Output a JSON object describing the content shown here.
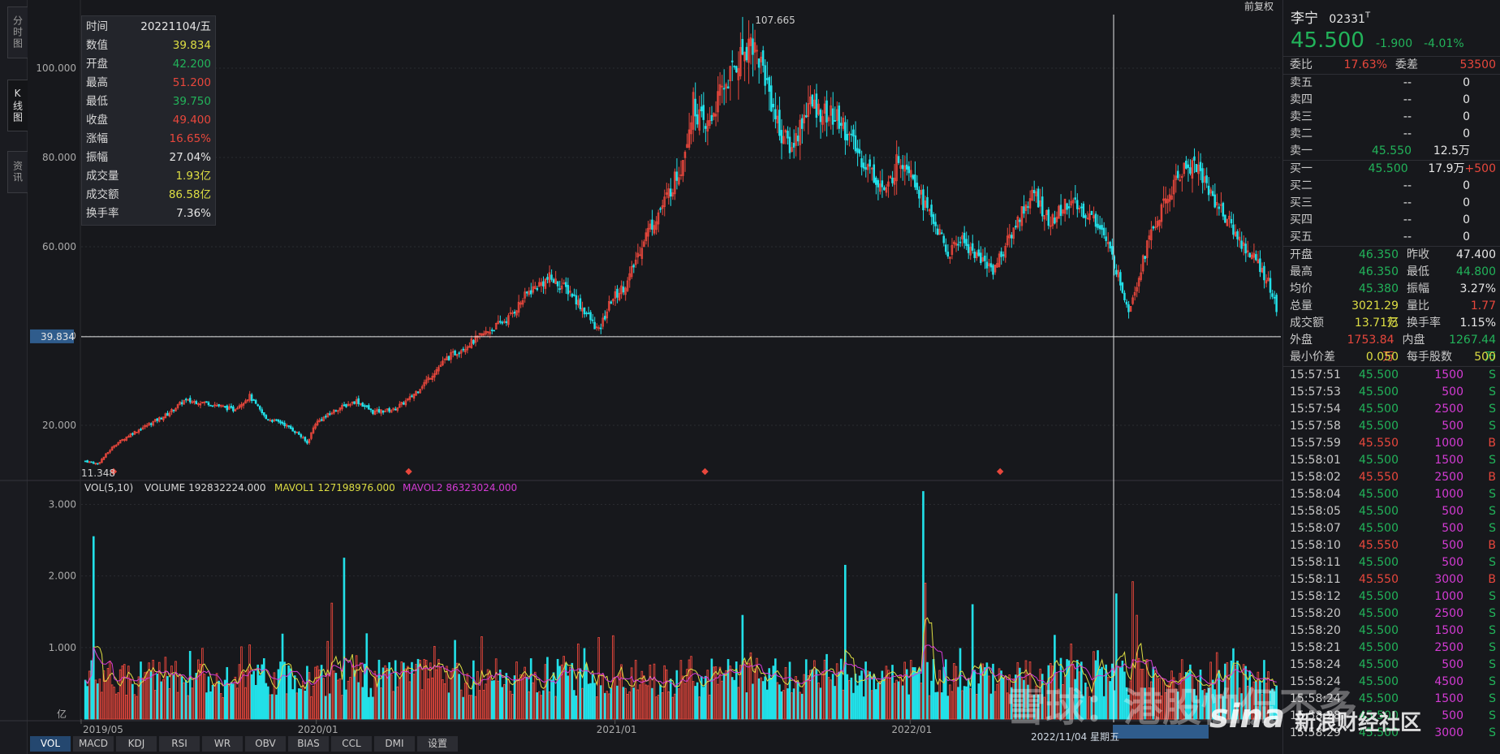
{
  "side_tabs": [
    {
      "label": "分时图",
      "active": false
    },
    {
      "label": "K线图",
      "active": true
    },
    {
      "label": "资讯",
      "active": false
    }
  ],
  "adjust_label": "前复权",
  "info_box": [
    {
      "label": "时间",
      "value": "20221104/五",
      "color": "#e6e6e6"
    },
    {
      "label": "数值",
      "value": "39.834",
      "color": "#dede43"
    },
    {
      "label": "开盘",
      "value": "42.200",
      "color": "#22b35a"
    },
    {
      "label": "最高",
      "value": "51.200",
      "color": "#e8473c"
    },
    {
      "label": "最低",
      "value": "39.750",
      "color": "#22b35a"
    },
    {
      "label": "收盘",
      "value": "49.400",
      "color": "#e8473c"
    },
    {
      "label": "涨幅",
      "value": "16.65%",
      "color": "#e8473c"
    },
    {
      "label": "振幅",
      "value": "27.04%",
      "color": "#e6e6e6"
    },
    {
      "label": "成交量",
      "value": "1.93亿",
      "color": "#dede43"
    },
    {
      "label": "成交额",
      "value": "86.58亿",
      "color": "#dede43"
    },
    {
      "label": "换手率",
      "value": "7.36%",
      "color": "#e6e6e6"
    }
  ],
  "vol_legend": {
    "name": "VOL(5,10)",
    "volume": "VOLUME 192832224.000",
    "mavol1": "MAVOL1 127198976.000",
    "mavol2": "MAVOL2 86323024.000"
  },
  "crosshair": {
    "price_label": "39.834",
    "date_label": "2022/11/04 星期五",
    "price": 39.834
  },
  "colors": {
    "up": "#e8473c",
    "down": "#22e0e8",
    "ma1": "#dede43",
    "ma2": "#d43bd4",
    "bg": "#17181c"
  },
  "bottom_tabs": [
    "VOL",
    "MACD",
    "KDJ",
    "RSI",
    "WR",
    "OBV",
    "BIAS",
    "CCL",
    "DMI",
    "设置"
  ],
  "chart_data": {
    "type": "candlestick",
    "price_axis": {
      "ticks": [
        "100.000",
        "80.000",
        "60.000",
        "40.000",
        "20.000"
      ],
      "min": 8,
      "max": 112
    },
    "volume_axis": {
      "ticks": [
        "3.000",
        "2.000",
        "1.000"
      ],
      "unit": "亿",
      "min": 0,
      "max": 3.3
    },
    "x_labels": [
      "2019/05",
      "2020/01",
      "2021/01",
      "2022/01"
    ],
    "max_label": "107.665",
    "min_label": "11.348",
    "anchors": [
      [
        0,
        12.0
      ],
      [
        6,
        11.35
      ],
      [
        14,
        15.5
      ],
      [
        22,
        18.0
      ],
      [
        30,
        20.0
      ],
      [
        40,
        22.5
      ],
      [
        48,
        25.5
      ],
      [
        60,
        25.0
      ],
      [
        72,
        23.5
      ],
      [
        80,
        26.5
      ],
      [
        88,
        21.5
      ],
      [
        96,
        20.5
      ],
      [
        104,
        18.0
      ],
      [
        108,
        16.0
      ],
      [
        112,
        20.5
      ],
      [
        122,
        23.5
      ],
      [
        132,
        25.5
      ],
      [
        140,
        23.0
      ],
      [
        150,
        23.5
      ],
      [
        158,
        26.0
      ],
      [
        166,
        30.0
      ],
      [
        176,
        35.0
      ],
      [
        186,
        38.0
      ],
      [
        196,
        41.0
      ],
      [
        206,
        44.0
      ],
      [
        216,
        50.0
      ],
      [
        226,
        53.0
      ],
      [
        236,
        50.0
      ],
      [
        244,
        45.0
      ],
      [
        250,
        41.0
      ],
      [
        256,
        48.0
      ],
      [
        264,
        52.0
      ],
      [
        272,
        62.0
      ],
      [
        282,
        70.0
      ],
      [
        290,
        78.0
      ],
      [
        296,
        92.0
      ],
      [
        302,
        86.0
      ],
      [
        310,
        95.0
      ],
      [
        318,
        102.0
      ],
      [
        324,
        106.5
      ],
      [
        330,
        100.0
      ],
      [
        338,
        86.0
      ],
      [
        344,
        82.0
      ],
      [
        352,
        92.0
      ],
      [
        360,
        90.0
      ],
      [
        368,
        88.0
      ],
      [
        376,
        81.0
      ],
      [
        384,
        76.0
      ],
      [
        390,
        72.0
      ],
      [
        396,
        80.0
      ],
      [
        402,
        78.0
      ],
      [
        408,
        70.0
      ],
      [
        414,
        65.0
      ],
      [
        420,
        58.0
      ],
      [
        426,
        62.0
      ],
      [
        434,
        58.0
      ],
      [
        442,
        55.0
      ],
      [
        448,
        60.0
      ],
      [
        456,
        68.0
      ],
      [
        462,
        72.0
      ],
      [
        470,
        65.0
      ],
      [
        478,
        70.0
      ],
      [
        486,
        68.0
      ],
      [
        494,
        65.0
      ],
      [
        502,
        55.0
      ],
      [
        508,
        46.0
      ],
      [
        512,
        52.0
      ],
      [
        518,
        62.0
      ],
      [
        526,
        70.0
      ],
      [
        534,
        77.0
      ],
      [
        540,
        79.0
      ],
      [
        548,
        72.0
      ],
      [
        556,
        66.0
      ],
      [
        564,
        60.0
      ],
      [
        570,
        57.0
      ],
      [
        576,
        52.0
      ],
      [
        580,
        46.0
      ]
    ],
    "volume_spikes": [
      [
        4,
        2.55
      ],
      [
        120,
        1.62
      ],
      [
        126,
        2.25
      ],
      [
        370,
        2.15
      ],
      [
        408,
        3.18
      ],
      [
        409,
        1.9
      ],
      [
        432,
        1.6
      ],
      [
        480,
        1.05
      ],
      [
        502,
        1.75
      ],
      [
        510,
        1.92
      ],
      [
        512,
        1.45
      ],
      [
        320,
        1.45
      ],
      [
        180,
        1.1
      ],
      [
        240,
        1.05
      ]
    ]
  }
}
